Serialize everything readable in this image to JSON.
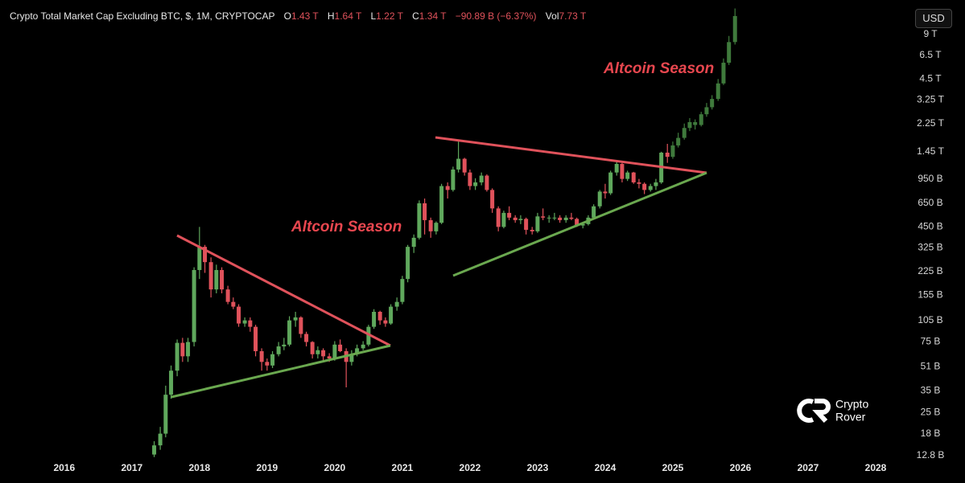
{
  "header": {
    "title": "Crypto Total Market Cap Excluding BTC, $, 1M, CRYPTOCAP",
    "ohlc": [
      {
        "label": "O",
        "value": "1.43 T"
      },
      {
        "label": "H",
        "value": "1.64 T"
      },
      {
        "label": "L",
        "value": "1.22 T"
      },
      {
        "label": "C",
        "value": "1.34 T"
      }
    ],
    "change": "−90.89 B (−6.37%)",
    "volume_label": "Vol",
    "volume": "7.73 T",
    "currency_button": "USD"
  },
  "logo": {
    "line1": "Crypto",
    "line2": "Rover"
  },
  "chart_data": {
    "type": "candlestick",
    "log_scale": true,
    "annotations": [
      "Altcoin Season",
      "Altcoin Season"
    ],
    "xlim": [
      2015.05,
      2028.5
    ],
    "xticks": [
      2016,
      2017,
      2018,
      2019,
      2020,
      2021,
      2022,
      2023,
      2024,
      2025,
      2026,
      2027,
      2028
    ],
    "ylim": [
      12,
      15400
    ],
    "yticks": [
      {
        "value": 12.8,
        "label": "12.8 B"
      },
      {
        "value": 18,
        "label": "18 B"
      },
      {
        "value": 25,
        "label": "25 B"
      },
      {
        "value": 35,
        "label": "35 B"
      },
      {
        "value": 51,
        "label": "51 B"
      },
      {
        "value": 75,
        "label": "75 B"
      },
      {
        "value": 105,
        "label": "105 B"
      },
      {
        "value": 155,
        "label": "155 B"
      },
      {
        "value": 225,
        "label": "225 B"
      },
      {
        "value": 325,
        "label": "325 B"
      },
      {
        "value": 450,
        "label": "450 B"
      },
      {
        "value": 650,
        "label": "650 B"
      },
      {
        "value": 950,
        "label": "950 B"
      },
      {
        "value": 1450,
        "label": "1.45 T"
      },
      {
        "value": 2250,
        "label": "2.25 T"
      },
      {
        "value": 3250,
        "label": "3.25 T"
      },
      {
        "value": 4500,
        "label": "4.5 T"
      },
      {
        "value": 6500,
        "label": "6.5 T"
      },
      {
        "value": 9000,
        "label": "9 T"
      }
    ],
    "candles": {
      "up_color": "#5fa85c",
      "down_color": "#e0525b",
      "x": [
        2017.33,
        2017.42,
        2017.5,
        2017.58,
        2017.67,
        2017.75,
        2017.83,
        2017.92,
        2018,
        2018.08,
        2018.17,
        2018.25,
        2018.33,
        2018.42,
        2018.5,
        2018.58,
        2018.67,
        2018.75,
        2018.83,
        2018.92,
        2019,
        2019.08,
        2019.17,
        2019.25,
        2019.33,
        2019.42,
        2019.5,
        2019.58,
        2019.67,
        2019.75,
        2019.83,
        2019.92,
        2020,
        2020.08,
        2020.17,
        2020.25,
        2020.33,
        2020.42,
        2020.5,
        2020.58,
        2020.67,
        2020.75,
        2020.83,
        2020.92,
        2021,
        2021.08,
        2021.17,
        2021.25,
        2021.33,
        2021.42,
        2021.5,
        2021.58,
        2021.67,
        2021.75,
        2021.83,
        2021.92,
        2022,
        2022.08,
        2022.17,
        2022.25,
        2022.33,
        2022.42,
        2022.5,
        2022.58,
        2022.67,
        2022.75,
        2022.83,
        2022.92,
        2023,
        2023.08,
        2023.17,
        2023.25,
        2023.33,
        2023.42,
        2023.5,
        2023.58,
        2023.67,
        2023.75,
        2023.83,
        2023.92,
        2024,
        2024.08,
        2024.17,
        2024.25,
        2024.33,
        2024.42,
        2024.5,
        2024.58,
        2024.67,
        2024.75,
        2024.83,
        2024.92
      ],
      "open": [
        13,
        15,
        18,
        33,
        48,
        74,
        60,
        75,
        230,
        330,
        260,
        170,
        230,
        170,
        140,
        130,
        100,
        105,
        95,
        65,
        55,
        52,
        62,
        70,
        72,
        105,
        110,
        85,
        75,
        62,
        66,
        60,
        58,
        72,
        65,
        55,
        62,
        68,
        72,
        95,
        120,
        105,
        100,
        130,
        140,
        200,
        330,
        380,
        650,
        500,
        420,
        480,
        850,
        800,
        1100,
        1300,
        1050,
        850,
        900,
        1000,
        800,
        600,
        450,
        560,
        520,
        500,
        510,
        430,
        420,
        530,
        520,
        520,
        520,
        500,
        520,
        510,
        460,
        470,
        520,
        620,
        780,
        760,
        1050,
        1200,
        950,
        1050,
        900,
        880,
        800,
        850,
        900,
        1430
      ],
      "high": [
        16,
        20,
        38,
        52,
        78,
        80,
        80,
        240,
        450,
        340,
        280,
        250,
        240,
        180,
        150,
        135,
        110,
        110,
        98,
        68,
        58,
        65,
        75,
        80,
        112,
        120,
        112,
        88,
        76,
        70,
        68,
        63,
        76,
        78,
        68,
        66,
        72,
        76,
        98,
        125,
        122,
        110,
        135,
        150,
        210,
        340,
        400,
        680,
        700,
        520,
        490,
        880,
        900,
        1150,
        1700,
        1320,
        1100,
        960,
        1050,
        1020,
        820,
        620,
        580,
        620,
        540,
        540,
        520,
        450,
        560,
        600,
        540,
        560,
        540,
        540,
        560,
        520,
        480,
        540,
        640,
        800,
        880,
        1080,
        1260,
        1220,
        1080,
        1060,
        950,
        900,
        880,
        950,
        1450,
        1640
      ],
      "low": [
        12.5,
        14,
        17,
        31,
        44,
        55,
        55,
        70,
        200,
        220,
        150,
        160,
        160,
        135,
        125,
        95,
        95,
        88,
        60,
        48,
        48,
        50,
        60,
        66,
        70,
        95,
        80,
        70,
        58,
        58,
        56,
        55,
        56,
        64,
        37,
        52,
        60,
        66,
        70,
        92,
        98,
        95,
        98,
        122,
        135,
        190,
        300,
        370,
        400,
        380,
        400,
        470,
        700,
        780,
        1050,
        1000,
        800,
        800,
        860,
        780,
        560,
        420,
        440,
        500,
        480,
        470,
        400,
        400,
        410,
        500,
        480,
        500,
        480,
        480,
        500,
        450,
        440,
        460,
        510,
        600,
        700,
        740,
        1000,
        900,
        920,
        880,
        820,
        750,
        780,
        800,
        880,
        1220
      ],
      "close": [
        15,
        18,
        33,
        48,
        74,
        60,
        75,
        230,
        330,
        260,
        170,
        230,
        170,
        140,
        130,
        100,
        105,
        95,
        65,
        55,
        52,
        62,
        70,
        72,
        105,
        110,
        85,
        75,
        62,
        66,
        60,
        58,
        72,
        65,
        55,
        62,
        68,
        72,
        95,
        120,
        105,
        100,
        130,
        140,
        200,
        330,
        380,
        650,
        500,
        420,
        480,
        850,
        800,
        1100,
        1300,
        1050,
        850,
        900,
        1000,
        800,
        600,
        450,
        560,
        520,
        500,
        510,
        430,
        420,
        530,
        520,
        520,
        520,
        500,
        520,
        510,
        460,
        470,
        520,
        620,
        780,
        760,
        1050,
        1200,
        950,
        1050,
        900,
        880,
        800,
        850,
        900,
        1430,
        1340
      ]
    },
    "projection": {
      "up_color": "#3f7a3c",
      "down_color": "#3f7a3c",
      "x": [
        2025,
        2025.08,
        2025.17,
        2025.25,
        2025.33,
        2025.42,
        2025.5,
        2025.58,
        2025.67,
        2025.75,
        2025.83,
        2025.92
      ],
      "open": [
        1340,
        1600,
        1800,
        2100,
        2300,
        2200,
        2600,
        2900,
        3300,
        4200,
        5800,
        8000
      ],
      "high": [
        1700,
        1950,
        2250,
        2450,
        2400,
        2700,
        3100,
        3500,
        4500,
        6200,
        8800,
        13500
      ],
      "low": [
        1300,
        1550,
        1750,
        2000,
        2050,
        2150,
        2500,
        2800,
        3200,
        4100,
        5600,
        7700
      ],
      "close": [
        1600,
        1800,
        2100,
        2300,
        2200,
        2600,
        2900,
        3300,
        4200,
        5800,
        8000,
        12000
      ]
    }
  }
}
